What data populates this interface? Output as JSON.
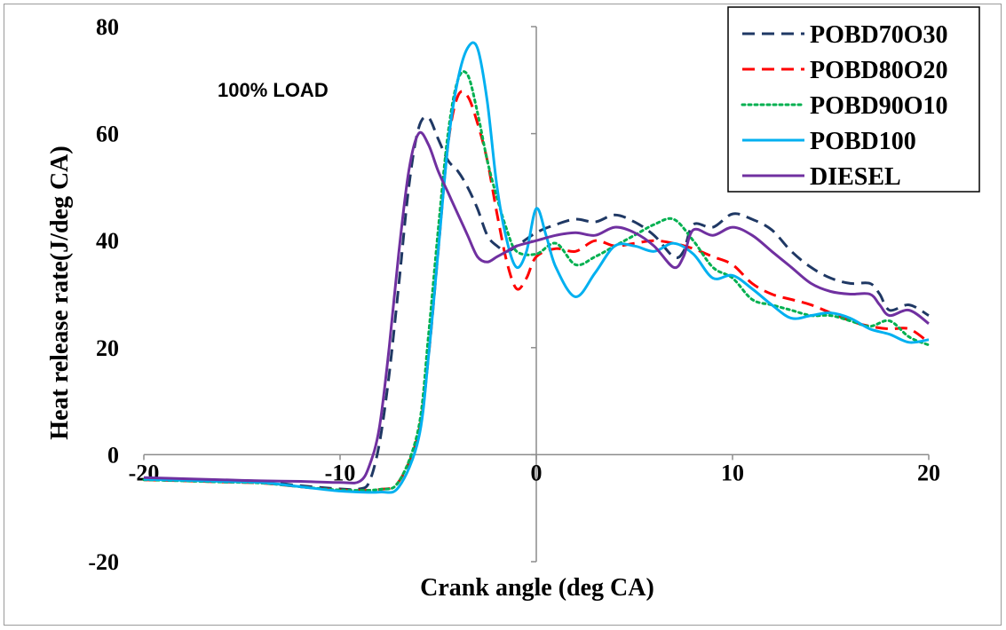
{
  "chart_data": {
    "type": "line",
    "title": "",
    "annotation": "100% LOAD",
    "xlabel": "Crank angle (deg CA)",
    "ylabel": "Heat release rate(J/deg CA)",
    "xlim": [
      -20,
      20
    ],
    "ylim": [
      -20,
      80
    ],
    "x_ticks": [
      -20,
      -10,
      0,
      10,
      20
    ],
    "y_ticks": [
      -20,
      0,
      20,
      40,
      60,
      80
    ],
    "x_tick_labels": [
      "-20",
      "-10",
      "0",
      "10",
      "20"
    ],
    "y_tick_labels": [
      "-20",
      "0",
      "20",
      "40",
      "60",
      "80"
    ],
    "grid": false,
    "legend_position": "top-right",
    "series": [
      {
        "name": "POBD70O30",
        "color": "#1f3864",
        "dash": "dashed",
        "points": [
          [
            -20,
            -4.5
          ],
          [
            -18,
            -4.6
          ],
          [
            -16,
            -4.8
          ],
          [
            -14,
            -5.0
          ],
          [
            -12,
            -5.8
          ],
          [
            -10,
            -6.4
          ],
          [
            -9,
            -6.4
          ],
          [
            -8.5,
            -5
          ],
          [
            -8,
            2
          ],
          [
            -7.5,
            15
          ],
          [
            -7,
            32
          ],
          [
            -6.5,
            50
          ],
          [
            -6,
            61
          ],
          [
            -5.5,
            63
          ],
          [
            -5,
            59
          ],
          [
            -4.5,
            55
          ],
          [
            -4,
            53
          ],
          [
            -3.5,
            50
          ],
          [
            -3,
            46
          ],
          [
            -2.5,
            41
          ],
          [
            -2,
            39
          ],
          [
            -1.5,
            38
          ],
          [
            -1,
            39
          ],
          [
            0,
            41.5
          ],
          [
            1,
            43
          ],
          [
            2,
            44
          ],
          [
            3,
            43.5
          ],
          [
            4,
            44.8
          ],
          [
            5,
            43.5
          ],
          [
            6,
            41
          ],
          [
            7,
            37
          ],
          [
            7.5,
            38
          ],
          [
            8,
            43
          ],
          [
            9,
            42.5
          ],
          [
            10,
            45
          ],
          [
            11,
            44
          ],
          [
            12,
            42
          ],
          [
            13,
            38
          ],
          [
            14,
            35
          ],
          [
            15,
            33
          ],
          [
            16,
            32
          ],
          [
            17,
            32
          ],
          [
            17.5,
            30
          ],
          [
            18,
            27
          ],
          [
            19,
            28
          ],
          [
            20,
            26
          ]
        ]
      },
      {
        "name": "POBD80O20",
        "color": "#ff0000",
        "dash": "dashed",
        "points": [
          [
            -20,
            -4.7
          ],
          [
            -18,
            -4.9
          ],
          [
            -16,
            -5.1
          ],
          [
            -14,
            -5.3
          ],
          [
            -12,
            -6.0
          ],
          [
            -10,
            -6.6
          ],
          [
            -8,
            -6.5
          ],
          [
            -7,
            -5
          ],
          [
            -6,
            4
          ],
          [
            -5.5,
            18
          ],
          [
            -5,
            38
          ],
          [
            -4.5,
            58
          ],
          [
            -4,
            67
          ],
          [
            -3.5,
            67
          ],
          [
            -3,
            62
          ],
          [
            -2.5,
            55
          ],
          [
            -2,
            45
          ],
          [
            -1.5,
            36
          ],
          [
            -1,
            31
          ],
          [
            -0.5,
            33
          ],
          [
            0,
            37
          ],
          [
            1,
            38.5
          ],
          [
            2,
            38
          ],
          [
            3,
            40
          ],
          [
            4,
            39
          ],
          [
            5,
            39.5
          ],
          [
            6,
            40
          ],
          [
            7,
            39.5
          ],
          [
            8,
            38.5
          ],
          [
            9,
            37
          ],
          [
            10,
            35.5
          ],
          [
            11,
            32
          ],
          [
            12,
            30
          ],
          [
            13,
            29
          ],
          [
            14,
            28
          ],
          [
            15,
            26.5
          ],
          [
            16,
            25
          ],
          [
            17,
            24
          ],
          [
            18,
            23.5
          ],
          [
            19,
            23.5
          ],
          [
            20,
            21
          ]
        ]
      },
      {
        "name": "POBD90O10",
        "color": "#00b050",
        "dash": "dotted",
        "points": [
          [
            -20,
            -4.7
          ],
          [
            -18,
            -4.9
          ],
          [
            -16,
            -5.1
          ],
          [
            -14,
            -5.3
          ],
          [
            -12,
            -6.0
          ],
          [
            -10,
            -6.6
          ],
          [
            -8,
            -6.5
          ],
          [
            -7,
            -5
          ],
          [
            -6,
            5
          ],
          [
            -5.5,
            22
          ],
          [
            -5,
            42
          ],
          [
            -4.5,
            60
          ],
          [
            -4,
            70
          ],
          [
            -3.5,
            71
          ],
          [
            -3,
            64
          ],
          [
            -2.5,
            55
          ],
          [
            -2,
            48
          ],
          [
            -1.5,
            42
          ],
          [
            -1,
            38
          ],
          [
            0,
            37.5
          ],
          [
            1,
            39.5
          ],
          [
            2,
            35.5
          ],
          [
            3,
            37
          ],
          [
            4,
            39
          ],
          [
            5,
            41
          ],
          [
            6,
            43
          ],
          [
            7,
            44
          ],
          [
            8,
            40
          ],
          [
            9,
            35
          ],
          [
            10,
            33
          ],
          [
            11,
            29
          ],
          [
            12,
            28
          ],
          [
            13,
            27
          ],
          [
            14,
            26
          ],
          [
            15,
            26
          ],
          [
            16,
            25
          ],
          [
            17,
            24
          ],
          [
            18,
            25
          ],
          [
            19,
            22
          ],
          [
            20,
            20.5
          ]
        ]
      },
      {
        "name": "POBD100",
        "color": "#00b0f0",
        "dash": "solid",
        "points": [
          [
            -20,
            -4.6
          ],
          [
            -18,
            -4.8
          ],
          [
            -16,
            -5.0
          ],
          [
            -14,
            -5.2
          ],
          [
            -12,
            -6.0
          ],
          [
            -10,
            -6.8
          ],
          [
            -8,
            -7
          ],
          [
            -7,
            -6
          ],
          [
            -6,
            3
          ],
          [
            -5.5,
            18
          ],
          [
            -5,
            38
          ],
          [
            -4.5,
            58
          ],
          [
            -4,
            70
          ],
          [
            -3.5,
            76
          ],
          [
            -3,
            76
          ],
          [
            -2.5,
            66
          ],
          [
            -2,
            50
          ],
          [
            -1.5,
            40
          ],
          [
            -1,
            35
          ],
          [
            -0.5,
            38
          ],
          [
            0,
            46
          ],
          [
            0.5,
            41
          ],
          [
            1,
            35
          ],
          [
            2,
            29.5
          ],
          [
            3,
            34
          ],
          [
            4,
            39
          ],
          [
            5,
            39
          ],
          [
            6,
            38
          ],
          [
            7,
            39.5
          ],
          [
            8,
            37.5
          ],
          [
            9,
            33
          ],
          [
            10,
            33.5
          ],
          [
            11,
            31
          ],
          [
            12,
            28
          ],
          [
            13,
            25.5
          ],
          [
            14,
            26
          ],
          [
            15,
            26.5
          ],
          [
            16,
            25.5
          ],
          [
            17,
            23.5
          ],
          [
            18,
            22.5
          ],
          [
            19,
            21
          ],
          [
            20,
            21.5
          ]
        ]
      },
      {
        "name": "DIESEL",
        "color": "#7030a0",
        "dash": "solid",
        "points": [
          [
            -20,
            -4.3
          ],
          [
            -18,
            -4.5
          ],
          [
            -16,
            -4.7
          ],
          [
            -14,
            -4.9
          ],
          [
            -12,
            -5.0
          ],
          [
            -10,
            -5.2
          ],
          [
            -9,
            -5
          ],
          [
            -8.5,
            -2
          ],
          [
            -8,
            5
          ],
          [
            -7.5,
            20
          ],
          [
            -7,
            38
          ],
          [
            -6.5,
            53
          ],
          [
            -6,
            60
          ],
          [
            -5.5,
            58
          ],
          [
            -5,
            53
          ],
          [
            -4.5,
            49
          ],
          [
            -4,
            45
          ],
          [
            -3.5,
            41
          ],
          [
            -3,
            37
          ],
          [
            -2.5,
            36
          ],
          [
            -2,
            37
          ],
          [
            -1.5,
            38
          ],
          [
            -1,
            39
          ],
          [
            0,
            40
          ],
          [
            1,
            41
          ],
          [
            2,
            41.5
          ],
          [
            3,
            41
          ],
          [
            4,
            42.5
          ],
          [
            5,
            41.5
          ],
          [
            6,
            39
          ],
          [
            7,
            35
          ],
          [
            7.5,
            37
          ],
          [
            8,
            42
          ],
          [
            9,
            41
          ],
          [
            10,
            42.5
          ],
          [
            11,
            41
          ],
          [
            12,
            38
          ],
          [
            13,
            35
          ],
          [
            14,
            32
          ],
          [
            15,
            30.5
          ],
          [
            16,
            30
          ],
          [
            17,
            30
          ],
          [
            17.5,
            28
          ],
          [
            18,
            26
          ],
          [
            19,
            27
          ],
          [
            20,
            24.5
          ]
        ]
      }
    ]
  }
}
